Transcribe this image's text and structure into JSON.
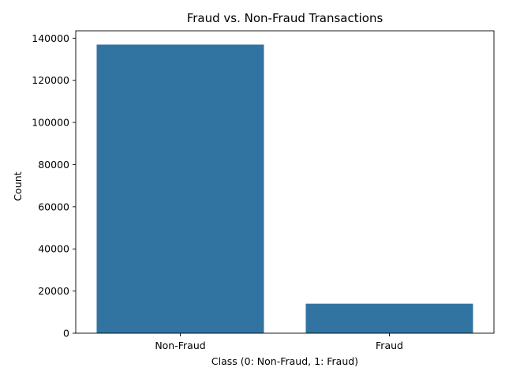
{
  "chart_data": {
    "type": "bar",
    "title": "Fraud vs. Non-Fraud Transactions",
    "xlabel": "Class (0: Non-Fraud, 1: Fraud)",
    "ylabel": "Count",
    "categories": [
      "Non-Fraud",
      "Fraud"
    ],
    "values": [
      136950,
      14000
    ],
    "ylim": [
      0,
      143500
    ],
    "yticks": [
      0,
      20000,
      40000,
      60000,
      80000,
      100000,
      120000,
      140000
    ],
    "bar_color": "#3274a1",
    "grid": false,
    "legend": "none"
  }
}
